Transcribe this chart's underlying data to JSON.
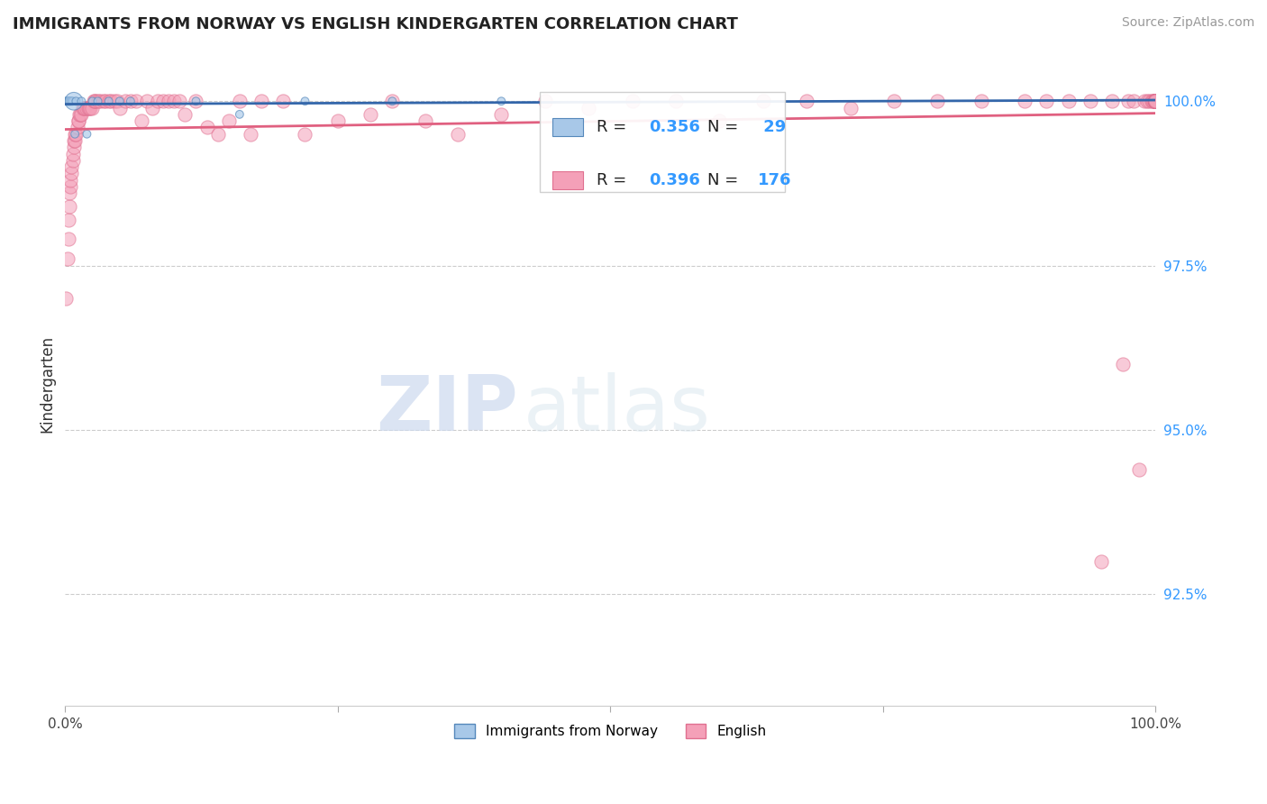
{
  "title": "IMMIGRANTS FROM NORWAY VS ENGLISH KINDERGARTEN CORRELATION CHART",
  "source": "Source: ZipAtlas.com",
  "ylabel": "Kindergarten",
  "legend_label1": "Immigrants from Norway",
  "legend_label2": "English",
  "R1": 0.356,
  "N1": 29,
  "R2": 0.396,
  "N2": 176,
  "color_blue_fill": "#a8c8e8",
  "color_blue_edge": "#5588bb",
  "color_blue_line": "#3366aa",
  "color_pink_fill": "#f4a0b8",
  "color_pink_edge": "#e07090",
  "color_pink_line": "#e06080",
  "color_ytick": "#3399ff",
  "ytick_labels": [
    "100.0%",
    "97.5%",
    "95.0%",
    "92.5%"
  ],
  "ytick_values": [
    1.0,
    0.975,
    0.95,
    0.925
  ],
  "background_color": "#ffffff",
  "watermark_zip": "ZIP",
  "watermark_atlas": "atlas",
  "xlim": [
    0.0,
    1.0
  ],
  "ylim": [
    0.908,
    1.006
  ],
  "blue_x": [
    0.001,
    0.002,
    0.002,
    0.003,
    0.003,
    0.003,
    0.004,
    0.004,
    0.004,
    0.005,
    0.005,
    0.006,
    0.006,
    0.007,
    0.008,
    0.009,
    0.01,
    0.015,
    0.02,
    0.025,
    0.03,
    0.04,
    0.05,
    0.06,
    0.12,
    0.16,
    0.22,
    0.3,
    0.4
  ],
  "blue_y": [
    1.0,
    1.0,
    1.0,
    1.0,
    1.0,
    1.0,
    1.0,
    1.0,
    1.0,
    1.0,
    1.0,
    1.0,
    1.0,
    1.0,
    1.0,
    0.995,
    1.0,
    1.0,
    0.995,
    1.0,
    1.0,
    1.0,
    1.0,
    1.0,
    1.0,
    0.998,
    1.0,
    1.0,
    1.0
  ],
  "blue_sizes": [
    40,
    40,
    40,
    40,
    40,
    40,
    40,
    40,
    40,
    40,
    40,
    40,
    40,
    40,
    200,
    40,
    40,
    40,
    40,
    40,
    40,
    40,
    40,
    40,
    40,
    40,
    40,
    40,
    40
  ],
  "pink_x": [
    0.001,
    0.002,
    0.003,
    0.003,
    0.004,
    0.004,
    0.005,
    0.005,
    0.006,
    0.006,
    0.007,
    0.007,
    0.008,
    0.008,
    0.009,
    0.009,
    0.01,
    0.011,
    0.012,
    0.012,
    0.013,
    0.014,
    0.015,
    0.016,
    0.017,
    0.018,
    0.02,
    0.021,
    0.022,
    0.023,
    0.025,
    0.026,
    0.027,
    0.028,
    0.03,
    0.032,
    0.035,
    0.037,
    0.04,
    0.042,
    0.045,
    0.048,
    0.05,
    0.055,
    0.06,
    0.065,
    0.07,
    0.075,
    0.08,
    0.085,
    0.09,
    0.095,
    0.1,
    0.105,
    0.11,
    0.12,
    0.13,
    0.14,
    0.15,
    0.16,
    0.17,
    0.18,
    0.2,
    0.22,
    0.25,
    0.28,
    0.3,
    0.33,
    0.36,
    0.4,
    0.44,
    0.48,
    0.52,
    0.56,
    0.6,
    0.64,
    0.68,
    0.72,
    0.76,
    0.8,
    0.84,
    0.88,
    0.9,
    0.92,
    0.94,
    0.95,
    0.96,
    0.97,
    0.975,
    0.98,
    0.985,
    0.99,
    0.992,
    0.994,
    0.996,
    0.997,
    0.998,
    0.999,
    0.9995,
    1.0,
    1.0,
    1.0,
    1.0,
    1.0,
    1.0,
    1.0,
    1.0,
    1.0,
    1.0,
    1.0,
    1.0,
    1.0,
    1.0,
    1.0,
    1.0,
    1.0,
    1.0,
    1.0,
    1.0,
    1.0,
    1.0,
    1.0,
    1.0,
    1.0,
    1.0,
    1.0,
    1.0,
    1.0,
    1.0,
    1.0,
    1.0,
    1.0,
    1.0,
    1.0,
    1.0,
    1.0,
    1.0,
    1.0,
    1.0,
    1.0,
    1.0,
    1.0,
    1.0,
    1.0,
    1.0,
    1.0,
    1.0,
    1.0,
    1.0,
    1.0,
    1.0,
    1.0,
    1.0,
    1.0,
    1.0
  ],
  "pink_y": [
    0.97,
    0.976,
    0.979,
    0.982,
    0.984,
    0.986,
    0.987,
    0.988,
    0.989,
    0.99,
    0.991,
    0.992,
    0.993,
    0.994,
    0.994,
    0.995,
    0.995,
    0.996,
    0.997,
    0.997,
    0.998,
    0.998,
    0.998,
    0.999,
    0.999,
    0.999,
    0.999,
    0.999,
    0.999,
    0.999,
    0.999,
    1.0,
    1.0,
    1.0,
    1.0,
    1.0,
    1.0,
    1.0,
    1.0,
    1.0,
    1.0,
    1.0,
    0.999,
    1.0,
    1.0,
    1.0,
    0.997,
    1.0,
    0.999,
    1.0,
    1.0,
    1.0,
    1.0,
    1.0,
    0.998,
    1.0,
    0.996,
    0.995,
    0.997,
    1.0,
    0.995,
    1.0,
    1.0,
    0.995,
    0.997,
    0.998,
    1.0,
    0.997,
    0.995,
    0.998,
    1.0,
    0.999,
    1.0,
    1.0,
    0.997,
    1.0,
    1.0,
    0.999,
    1.0,
    1.0,
    1.0,
    1.0,
    1.0,
    1.0,
    1.0,
    0.93,
    1.0,
    0.96,
    1.0,
    1.0,
    0.944,
    1.0,
    1.0,
    1.0,
    1.0,
    1.0,
    1.0,
    1.0,
    1.0,
    1.0,
    1.0,
    1.0,
    1.0,
    1.0,
    1.0,
    1.0,
    1.0,
    1.0,
    1.0,
    1.0,
    1.0,
    1.0,
    1.0,
    1.0,
    1.0,
    1.0,
    1.0,
    1.0,
    1.0,
    1.0,
    1.0,
    1.0,
    1.0,
    1.0,
    1.0,
    1.0,
    1.0,
    1.0,
    1.0,
    1.0,
    1.0,
    1.0,
    1.0,
    1.0,
    1.0,
    1.0,
    1.0,
    1.0,
    1.0,
    1.0,
    1.0,
    1.0,
    1.0,
    1.0,
    1.0,
    1.0,
    1.0,
    1.0,
    1.0,
    1.0,
    1.0,
    1.0,
    1.0,
    1.0,
    1.0
  ]
}
